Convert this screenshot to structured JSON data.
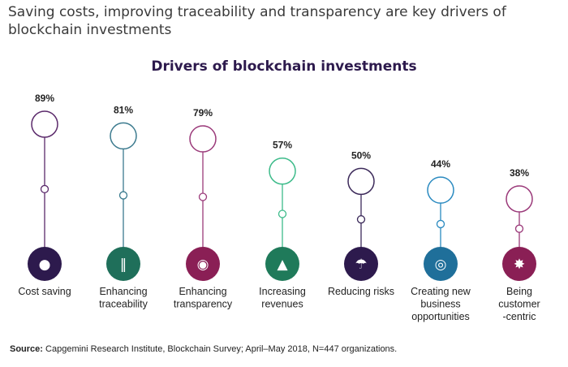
{
  "headline": "Saving costs, improving traceability and transparency are key drivers of blockchain investments",
  "chart_data": {
    "type": "lollipop",
    "title": "Drivers of blockchain investments",
    "categories": [
      [
        "Cost saving"
      ],
      [
        "Enhancing",
        "traceability"
      ],
      [
        "Enhancing",
        "transparency"
      ],
      [
        "Increasing",
        "revenues"
      ],
      [
        "Reducing risks"
      ],
      [
        "Creating new",
        "business",
        "opportunities"
      ],
      [
        "Being",
        "customer",
        "-centric"
      ]
    ],
    "values": [
      89,
      81,
      79,
      57,
      50,
      44,
      38
    ],
    "value_labels": [
      "89%",
      "81%",
      "79%",
      "57%",
      "50%",
      "44%",
      "38%"
    ],
    "icons": [
      "piggy-bank-icon",
      "barcode-icon",
      "eye-icon",
      "money-bag-up-icon",
      "umbrella-coins-icon",
      "binoculars-icon",
      "customer-centric-icon"
    ],
    "colors": [
      "#5b2a6b",
      "#3b7a8e",
      "#9b3a7a",
      "#3dbb8a",
      "#3c2a5a",
      "#2a8ac0",
      "#9b3a7a"
    ],
    "icon_bg": [
      "#2d1a4d",
      "#1f6f5a",
      "#8a1f55",
      "#1f7a5a",
      "#2d1a4d",
      "#1f6f9a",
      "#8a1f55"
    ]
  },
  "source": {
    "label": "Source:",
    "text": " Capgemini Research Institute, Blockchain Survey; April–May 2018, N=447 organizations."
  }
}
